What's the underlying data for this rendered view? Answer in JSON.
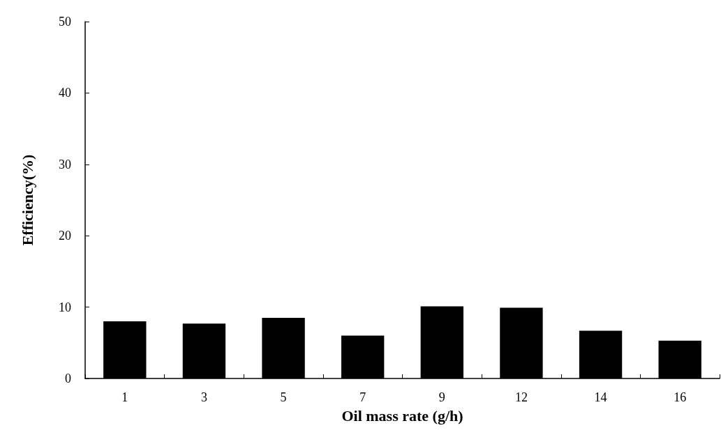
{
  "chart_data": {
    "type": "bar",
    "xlabel": "Oil mass rate (g/h)",
    "ylabel": "Efficiency(%)",
    "categories": [
      "1",
      "3",
      "5",
      "7",
      "9",
      "12",
      "14",
      "16"
    ],
    "values": [
      8.0,
      7.7,
      8.5,
      6.0,
      10.1,
      9.9,
      6.7,
      5.3
    ],
    "color": "#000000",
    "ylim": [
      0,
      50
    ],
    "yticks": [
      0,
      10,
      20,
      30,
      40,
      50
    ],
    "grid": false
  }
}
